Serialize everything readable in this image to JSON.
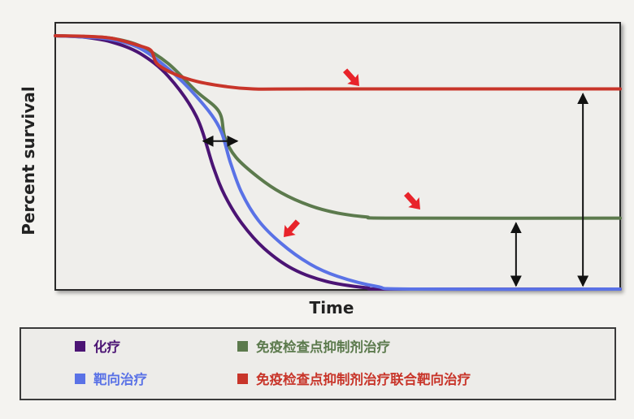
{
  "chart_data": {
    "type": "line",
    "xlabel": "Time",
    "ylabel": "Percent survival",
    "xlim": [
      0,
      100
    ],
    "ylim": [
      0,
      100
    ],
    "grid": false,
    "legend_position": "bottom",
    "series": [
      {
        "name": "化疗",
        "color": "#4b1474",
        "points": [
          [
            0,
            100
          ],
          [
            5,
            99.5
          ],
          [
            10,
            97.5
          ],
          [
            15,
            93
          ],
          [
            20,
            84
          ],
          [
            25,
            68
          ],
          [
            28,
            48
          ],
          [
            30,
            37
          ],
          [
            33,
            26
          ],
          [
            37,
            16
          ],
          [
            42,
            8
          ],
          [
            48,
            3
          ],
          [
            55,
            0.5
          ],
          [
            60,
            0
          ],
          [
            100,
            0
          ]
        ]
      },
      {
        "name": "免疫检查点抑制剂治疗",
        "color": "#5c7a4d",
        "points": [
          [
            0,
            100
          ],
          [
            5,
            99.7
          ],
          [
            10,
            99
          ],
          [
            15,
            96
          ],
          [
            20,
            89
          ],
          [
            25,
            78
          ],
          [
            29,
            70
          ],
          [
            30,
            60
          ],
          [
            32,
            52
          ],
          [
            36,
            44
          ],
          [
            40,
            38
          ],
          [
            45,
            33
          ],
          [
            50,
            30
          ],
          [
            55,
            28.5
          ],
          [
            60,
            28
          ],
          [
            100,
            28
          ]
        ]
      },
      {
        "name": "靶向治疗",
        "color": "#5a72e6",
        "points": [
          [
            0,
            100
          ],
          [
            5,
            99.5
          ],
          [
            10,
            98.5
          ],
          [
            15,
            95
          ],
          [
            20,
            87
          ],
          [
            25,
            76
          ],
          [
            29,
            64
          ],
          [
            31,
            50
          ],
          [
            33,
            38
          ],
          [
            36,
            27
          ],
          [
            40,
            18
          ],
          [
            45,
            10
          ],
          [
            50,
            5
          ],
          [
            57,
            1
          ],
          [
            63,
            0
          ],
          [
            100,
            0
          ]
        ]
      },
      {
        "name": "免疫检查点抑制剂治疗联合靶向治疗",
        "color": "#c8352a",
        "points": [
          [
            0,
            100
          ],
          [
            5,
            99.8
          ],
          [
            10,
            99
          ],
          [
            15,
            96
          ],
          [
            17,
            94
          ],
          [
            18,
            89
          ],
          [
            21,
            85
          ],
          [
            25,
            82
          ],
          [
            30,
            80
          ],
          [
            35,
            79
          ],
          [
            45,
            79
          ],
          [
            100,
            79
          ]
        ]
      }
    ],
    "legend": {
      "swatch_labels": [
        {
          "label": "化疗",
          "color": "#4b1474"
        },
        {
          "label": "免疫检查点抑制剂治疗",
          "color": "#5c7a4d"
        },
        {
          "label": "靶向治疗",
          "color": "#5a72e6"
        },
        {
          "label": "免疫检查点抑制剂治疗联合靶向治疗",
          "color": "#c8352a"
        }
      ]
    },
    "annotations": {
      "red_arrow_color": "#e8232a",
      "black_arrow_color": "#111111",
      "red_arrows_point_to": [
        "免疫检查点抑制剂治疗联合靶向治疗",
        "免疫检查点抑制剂治疗",
        "靶向治疗"
      ],
      "double_arrows": [
        {
          "orientation": "horizontal",
          "between": [
            "化疗",
            "免疫检查点抑制剂治疗"
          ],
          "y": 60
        },
        {
          "orientation": "vertical",
          "x": 83,
          "from_y": 0,
          "to_y": 28
        },
        {
          "orientation": "vertical",
          "x": 97,
          "from_y": 0,
          "to_y": 79
        }
      ]
    }
  }
}
